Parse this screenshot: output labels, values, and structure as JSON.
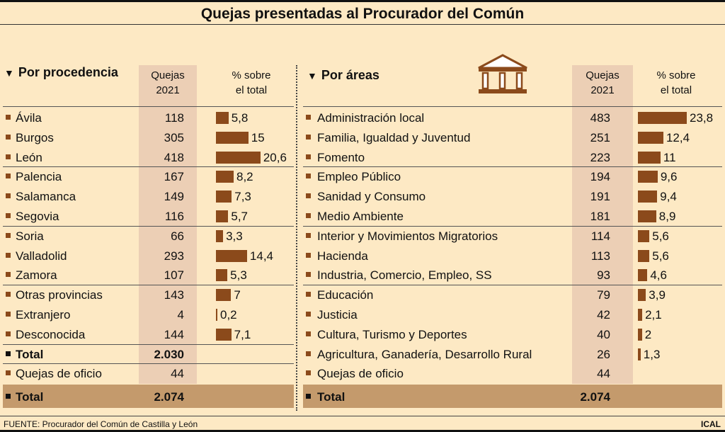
{
  "title": "Quejas presentadas al Procurador del Común",
  "footer": "FUENTE: Procurador del Común de Castilla y León",
  "credit": "ICAL",
  "colors": {
    "bar": "#8b4a1b",
    "background": "#fde9c4",
    "quejas_column": "#eccfb5",
    "total_band": "#c49a6c"
  },
  "chart_data": [
    {
      "type": "bar",
      "heading": "Por procedencia",
      "col_quejas": "Quejas 2021",
      "col_quejas_l1": "Quejas",
      "col_quejas_l2": "2021",
      "col_pct_l1": "% sobre",
      "col_pct_l2": "el total",
      "categories": [
        "Ávila",
        "Burgos",
        "León",
        "Palencia",
        "Salamanca",
        "Segovia",
        "Soria",
        "Valladolid",
        "Zamora",
        "Otras provincias",
        "Extranjero",
        "Desconocida"
      ],
      "quejas": [
        "118",
        "305",
        "418",
        "167",
        "149",
        "116",
        "66",
        "293",
        "107",
        "143",
        "4",
        "144"
      ],
      "values": [
        5.8,
        15,
        20.6,
        8.2,
        7.3,
        5.7,
        3.3,
        14.4,
        5.3,
        7,
        0.2,
        7.1
      ],
      "labels": [
        "5,8",
        "15",
        "20,6",
        "8,2",
        "7,3",
        "5,7",
        "3,3",
        "14,4",
        "5,3",
        "7",
        "0,2",
        "7,1"
      ],
      "subtotal_label": "Total",
      "subtotal": "2.030",
      "oficio_label": "Quejas de oficio",
      "oficio": "44",
      "total_label": "Total",
      "total": "2.074"
    },
    {
      "type": "bar",
      "heading": "Por áreas",
      "col_quejas": "Quejas 2021",
      "col_quejas_l1": "Quejas",
      "col_quejas_l2": "2021",
      "col_pct_l1": "% sobre",
      "col_pct_l2": "el total",
      "categories": [
        "Administración local",
        "Familia, Igualdad y Juventud",
        "Fomento",
        "Empleo Público",
        "Sanidad y Consumo",
        "Medio Ambiente",
        "Interior y Movimientos Migratorios",
        "Hacienda",
        "Industria, Comercio, Empleo, SS",
        "Educación",
        "Justicia",
        "Cultura, Turismo y Deportes",
        "Agricultura, Ganadería, Desarrollo Rural"
      ],
      "quejas": [
        "483",
        "251",
        "223",
        "194",
        "191",
        "181",
        "114",
        "113",
        "93",
        "79",
        "42",
        "40",
        "26"
      ],
      "values": [
        23.8,
        12.4,
        11,
        9.6,
        9.4,
        8.9,
        5.6,
        5.6,
        4.6,
        3.9,
        2.1,
        2,
        1.3
      ],
      "labels": [
        "23,8",
        "12,4",
        "11",
        "9,6",
        "9,4",
        "8,9",
        "5,6",
        "5,6",
        "4,6",
        "3,9",
        "2,1",
        "2",
        "1,3"
      ],
      "oficio_label": "Quejas de oficio",
      "oficio": "44",
      "total_label": "Total",
      "total": "2.074"
    }
  ]
}
